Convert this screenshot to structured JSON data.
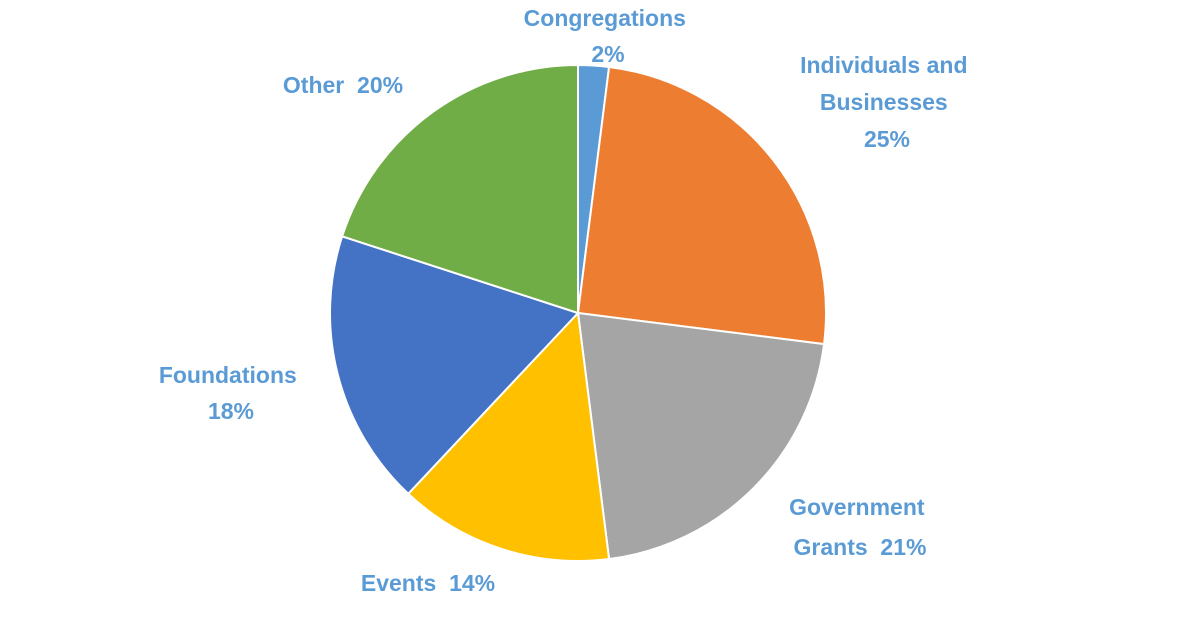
{
  "chart_data": {
    "type": "pie",
    "title": "",
    "start": "12 o'clock",
    "direction": "clockwise",
    "legend": "none",
    "label_color": "#5b9bd5",
    "slices": [
      {
        "key": "congregations",
        "category": "Congregations",
        "value": 2,
        "pct_label": "2%",
        "color": "#5b9bd5"
      },
      {
        "key": "individuals-and-businesses",
        "category": "Individuals and Businesses",
        "value": 25,
        "pct_label": "25%",
        "color": "#ed7d31"
      },
      {
        "key": "government-grants",
        "category": "Government Grants",
        "value": 21,
        "pct_label": "21%",
        "color": "#a5a5a5"
      },
      {
        "key": "events",
        "category": "Events",
        "value": 14,
        "pct_label": "14%",
        "color": "#ffc000"
      },
      {
        "key": "foundations",
        "category": "Foundations",
        "value": 18,
        "pct_label": "18%",
        "color": "#4472c4"
      },
      {
        "key": "other",
        "category": "Other",
        "value": 20,
        "pct_label": "20%",
        "color": "#70ad47"
      }
    ]
  }
}
